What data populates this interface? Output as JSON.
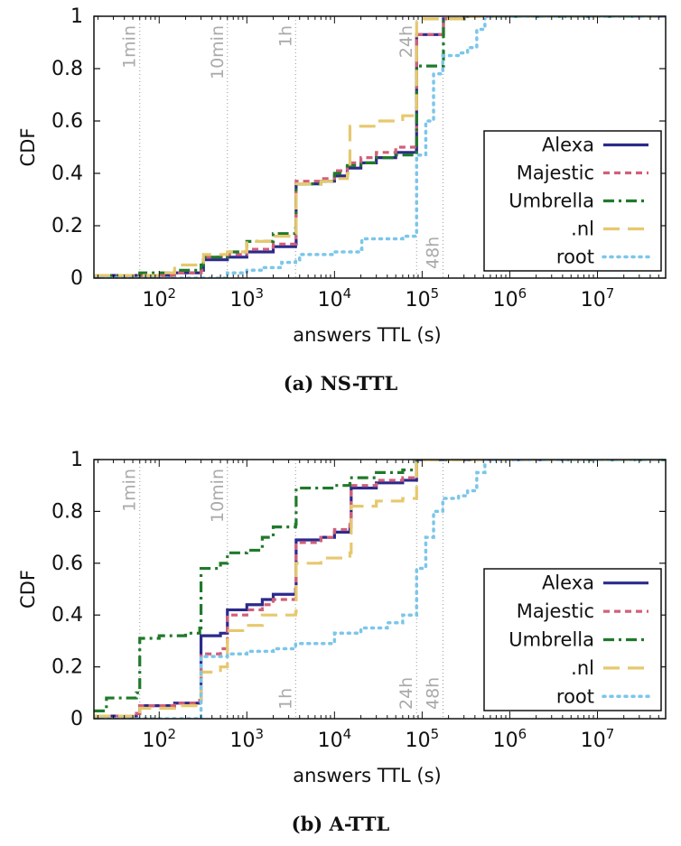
{
  "chart_data": [
    {
      "type": "line",
      "id": "ns",
      "caption": "(a) NS-TTL",
      "xlabel": "answers TTL (s)",
      "ylabel": "CDF",
      "x_scale": "log",
      "xlim": [
        18,
        60000000
      ],
      "ylim": [
        0,
        1
      ],
      "x_ticks": [
        {
          "value": 100,
          "base": "10",
          "exp": "2"
        },
        {
          "value": 1000,
          "base": "10",
          "exp": "3"
        },
        {
          "value": 10000,
          "base": "10",
          "exp": "4"
        },
        {
          "value": 100000,
          "base": "10",
          "exp": "5"
        },
        {
          "value": 1000000,
          "base": "10",
          "exp": "6"
        },
        {
          "value": 10000000,
          "base": "10",
          "exp": "7"
        }
      ],
      "y_ticks": [
        "0",
        "0.2",
        "0.4",
        "0.6",
        "0.8",
        "1"
      ],
      "y_tick_values": [
        0,
        0.2,
        0.4,
        0.6,
        0.8,
        1
      ],
      "reference_lines": [
        {
          "x": 60,
          "label": "1min",
          "position": "top"
        },
        {
          "x": 600,
          "label": "10min",
          "position": "top"
        },
        {
          "x": 3600,
          "label": "1h",
          "position": "top"
        },
        {
          "x": 86400,
          "label": "24h",
          "position": "top"
        },
        {
          "x": 172800,
          "label": "48h",
          "position": "bottom"
        }
      ],
      "legend_position": "right",
      "series": [
        {
          "name": "Alexa",
          "color": "#2b2a8c",
          "dash": "solid",
          "points": [
            [
              18,
              0.01
            ],
            [
              100,
              0.01
            ],
            [
              150,
              0.02
            ],
            [
              300,
              0.03
            ],
            [
              320,
              0.07
            ],
            [
              600,
              0.08
            ],
            [
              1000,
              0.1
            ],
            [
              2000,
              0.12
            ],
            [
              3600,
              0.13
            ],
            [
              3650,
              0.36
            ],
            [
              7000,
              0.37
            ],
            [
              10000,
              0.39
            ],
            [
              14000,
              0.42
            ],
            [
              20000,
              0.44
            ],
            [
              30000,
              0.46
            ],
            [
              50000,
              0.48
            ],
            [
              86000,
              0.49
            ],
            [
              86500,
              0.93
            ],
            [
              160000,
              0.93
            ],
            [
              172000,
              0.93
            ],
            [
              175000,
              0.99
            ],
            [
              300000,
              1.0
            ],
            [
              60000000,
              1.0
            ]
          ]
        },
        {
          "name": "Majestic",
          "color": "#d0607a",
          "dash": "short",
          "points": [
            [
              18,
              0.01
            ],
            [
              100,
              0.01
            ],
            [
              150,
              0.02
            ],
            [
              300,
              0.03
            ],
            [
              320,
              0.08
            ],
            [
              600,
              0.09
            ],
            [
              1000,
              0.11
            ],
            [
              2000,
              0.13
            ],
            [
              3600,
              0.14
            ],
            [
              3650,
              0.37
            ],
            [
              7000,
              0.38
            ],
            [
              10000,
              0.41
            ],
            [
              14000,
              0.44
            ],
            [
              20000,
              0.46
            ],
            [
              30000,
              0.48
            ],
            [
              50000,
              0.5
            ],
            [
              86000,
              0.51
            ],
            [
              86500,
              0.93
            ],
            [
              160000,
              0.93
            ],
            [
              172000,
              0.93
            ],
            [
              175000,
              0.99
            ],
            [
              300000,
              1.0
            ],
            [
              60000000,
              1.0
            ]
          ]
        },
        {
          "name": "Umbrella",
          "color": "#1f7a2a",
          "dash": "dashdot",
          "points": [
            [
              18,
              0.01
            ],
            [
              60,
              0.02
            ],
            [
              150,
              0.03
            ],
            [
              300,
              0.05
            ],
            [
              320,
              0.08
            ],
            [
              600,
              0.1
            ],
            [
              1000,
              0.14
            ],
            [
              2000,
              0.17
            ],
            [
              3600,
              0.19
            ],
            [
              3650,
              0.36
            ],
            [
              7000,
              0.37
            ],
            [
              10000,
              0.4
            ],
            [
              14000,
              0.43
            ],
            [
              20000,
              0.44
            ],
            [
              30000,
              0.46
            ],
            [
              50000,
              0.47
            ],
            [
              86000,
              0.48
            ],
            [
              86500,
              0.81
            ],
            [
              160000,
              0.81
            ],
            [
              172000,
              0.81
            ],
            [
              175000,
              0.99
            ],
            [
              300000,
              1.0
            ],
            [
              60000000,
              1.0
            ]
          ]
        },
        {
          "name": ".nl",
          "color": "#e6c86e",
          "dash": "long",
          "points": [
            [
              18,
              0.01
            ],
            [
              100,
              0.02
            ],
            [
              150,
              0.05
            ],
            [
              300,
              0.06
            ],
            [
              320,
              0.09
            ],
            [
              600,
              0.1
            ],
            [
              1000,
              0.14
            ],
            [
              2000,
              0.16
            ],
            [
              3600,
              0.17
            ],
            [
              3650,
              0.36
            ],
            [
              7000,
              0.37
            ],
            [
              10000,
              0.38
            ],
            [
              14000,
              0.4
            ],
            [
              15000,
              0.58
            ],
            [
              30000,
              0.6
            ],
            [
              60000,
              0.62
            ],
            [
              86000,
              0.62
            ],
            [
              86500,
              0.99
            ],
            [
              300000,
              1.0
            ],
            [
              60000000,
              1.0
            ]
          ]
        },
        {
          "name": "root",
          "color": "#7cc6ea",
          "dash": "dot",
          "points": [
            [
              18,
              0.0
            ],
            [
              500,
              0.0
            ],
            [
              600,
              0.02
            ],
            [
              1000,
              0.03
            ],
            [
              1500,
              0.04
            ],
            [
              2500,
              0.06
            ],
            [
              3600,
              0.07
            ],
            [
              4000,
              0.09
            ],
            [
              10000,
              0.1
            ],
            [
              20000,
              0.11
            ],
            [
              20500,
              0.15
            ],
            [
              60000,
              0.16
            ],
            [
              86000,
              0.17
            ],
            [
              86500,
              0.47
            ],
            [
              110000,
              0.6
            ],
            [
              135000,
              0.78
            ],
            [
              172000,
              0.85
            ],
            [
              260000,
              0.86
            ],
            [
              330000,
              0.88
            ],
            [
              420000,
              0.95
            ],
            [
              520000,
              1.0
            ],
            [
              60000000,
              1.0
            ]
          ]
        }
      ]
    },
    {
      "type": "line",
      "id": "a",
      "caption": "(b) A-TTL",
      "xlabel": "answers TTL (s)",
      "ylabel": "CDF",
      "x_scale": "log",
      "xlim": [
        18,
        60000000
      ],
      "ylim": [
        0,
        1
      ],
      "x_ticks": [
        {
          "value": 100,
          "base": "10",
          "exp": "2"
        },
        {
          "value": 1000,
          "base": "10",
          "exp": "3"
        },
        {
          "value": 10000,
          "base": "10",
          "exp": "4"
        },
        {
          "value": 100000,
          "base": "10",
          "exp": "5"
        },
        {
          "value": 1000000,
          "base": "10",
          "exp": "6"
        },
        {
          "value": 10000000,
          "base": "10",
          "exp": "7"
        }
      ],
      "y_ticks": [
        "0",
        "0.2",
        "0.4",
        "0.6",
        "0.8",
        "1"
      ],
      "y_tick_values": [
        0,
        0.2,
        0.4,
        0.6,
        0.8,
        1
      ],
      "reference_lines": [
        {
          "x": 60,
          "label": "1min",
          "position": "top"
        },
        {
          "x": 600,
          "label": "10min",
          "position": "top"
        },
        {
          "x": 3600,
          "label": "1h",
          "position": "bottom"
        },
        {
          "x": 86400,
          "label": "24h",
          "position": "bottom"
        },
        {
          "x": 172800,
          "label": "48h",
          "position": "bottom"
        }
      ],
      "legend_position": "right",
      "series": [
        {
          "name": "Alexa",
          "color": "#2b2a8c",
          "dash": "solid",
          "points": [
            [
              18,
              0.01
            ],
            [
              55,
              0.02
            ],
            [
              60,
              0.05
            ],
            [
              150,
              0.06
            ],
            [
              290,
              0.07
            ],
            [
              300,
              0.32
            ],
            [
              500,
              0.33
            ],
            [
              600,
              0.42
            ],
            [
              1000,
              0.44
            ],
            [
              1500,
              0.46
            ],
            [
              2000,
              0.48
            ],
            [
              3600,
              0.5
            ],
            [
              3650,
              0.69
            ],
            [
              7000,
              0.7
            ],
            [
              10000,
              0.72
            ],
            [
              15000,
              0.74
            ],
            [
              15500,
              0.89
            ],
            [
              30000,
              0.91
            ],
            [
              60000,
              0.92
            ],
            [
              86400,
              0.93
            ],
            [
              86500,
              1.0
            ],
            [
              60000000,
              1.0
            ]
          ]
        },
        {
          "name": "Majestic",
          "color": "#d0607a",
          "dash": "short",
          "points": [
            [
              18,
              0.01
            ],
            [
              55,
              0.02
            ],
            [
              60,
              0.05
            ],
            [
              150,
              0.06
            ],
            [
              290,
              0.07
            ],
            [
              300,
              0.25
            ],
            [
              500,
              0.27
            ],
            [
              600,
              0.4
            ],
            [
              1000,
              0.42
            ],
            [
              1500,
              0.44
            ],
            [
              2000,
              0.46
            ],
            [
              3600,
              0.48
            ],
            [
              3650,
              0.68
            ],
            [
              7000,
              0.7
            ],
            [
              10000,
              0.73
            ],
            [
              15000,
              0.75
            ],
            [
              15500,
              0.9
            ],
            [
              30000,
              0.92
            ],
            [
              60000,
              0.93
            ],
            [
              86400,
              0.93
            ],
            [
              86500,
              1.0
            ],
            [
              60000000,
              1.0
            ]
          ]
        },
        {
          "name": "Umbrella",
          "color": "#1f7a2a",
          "dash": "dashdot",
          "points": [
            [
              18,
              0.03
            ],
            [
              25,
              0.08
            ],
            [
              55,
              0.1
            ],
            [
              60,
              0.31
            ],
            [
              100,
              0.32
            ],
            [
              200,
              0.33
            ],
            [
              290,
              0.35
            ],
            [
              300,
              0.58
            ],
            [
              500,
              0.6
            ],
            [
              600,
              0.64
            ],
            [
              1000,
              0.65
            ],
            [
              1500,
              0.7
            ],
            [
              2000,
              0.74
            ],
            [
              3600,
              0.75
            ],
            [
              3650,
              0.89
            ],
            [
              10000,
              0.9
            ],
            [
              15000,
              0.93
            ],
            [
              30000,
              0.95
            ],
            [
              60000,
              0.96
            ],
            [
              86400,
              0.96
            ],
            [
              86500,
              1.0
            ],
            [
              60000000,
              1.0
            ]
          ]
        },
        {
          "name": ".nl",
          "color": "#e6c86e",
          "dash": "long",
          "points": [
            [
              18,
              0.01
            ],
            [
              55,
              0.02
            ],
            [
              60,
              0.04
            ],
            [
              150,
              0.05
            ],
            [
              290,
              0.06
            ],
            [
              300,
              0.18
            ],
            [
              500,
              0.2
            ],
            [
              600,
              0.34
            ],
            [
              1000,
              0.36
            ],
            [
              1500,
              0.4
            ],
            [
              3600,
              0.41
            ],
            [
              3650,
              0.6
            ],
            [
              7000,
              0.62
            ],
            [
              15000,
              0.64
            ],
            [
              15500,
              0.82
            ],
            [
              30000,
              0.84
            ],
            [
              60000,
              0.85
            ],
            [
              86400,
              0.85
            ],
            [
              86500,
              1.0
            ],
            [
              60000000,
              1.0
            ]
          ]
        },
        {
          "name": "root",
          "color": "#7cc6ea",
          "dash": "dot",
          "points": [
            [
              18,
              0.0
            ],
            [
              290,
              0.0
            ],
            [
              300,
              0.24
            ],
            [
              600,
              0.25
            ],
            [
              1000,
              0.26
            ],
            [
              2000,
              0.27
            ],
            [
              3600,
              0.29
            ],
            [
              10000,
              0.33
            ],
            [
              20000,
              0.35
            ],
            [
              40000,
              0.37
            ],
            [
              60000,
              0.4
            ],
            [
              86400,
              0.4
            ],
            [
              86500,
              0.58
            ],
            [
              110000,
              0.7
            ],
            [
              135000,
              0.8
            ],
            [
              172000,
              0.85
            ],
            [
              260000,
              0.86
            ],
            [
              330000,
              0.88
            ],
            [
              420000,
              0.95
            ],
            [
              520000,
              1.0
            ],
            [
              60000000,
              1.0
            ]
          ]
        }
      ]
    }
  ]
}
